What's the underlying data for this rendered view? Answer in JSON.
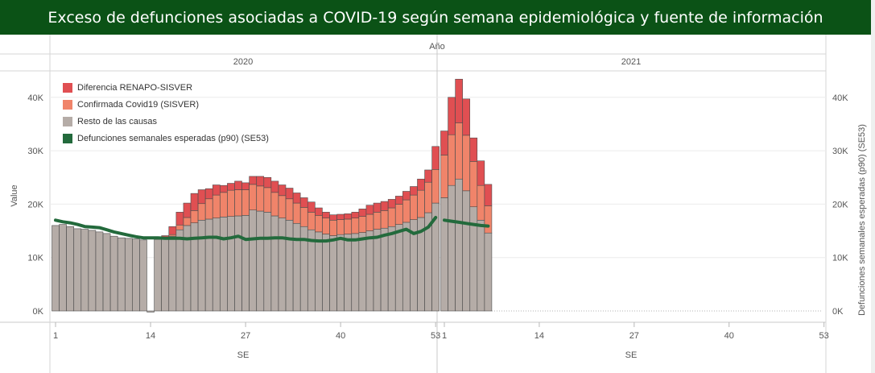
{
  "title": "Exceso de defunciones asociadas a COVID-19 según semana epidemiológica y fuente de información",
  "chart_data": {
    "type": "bar",
    "stacked": true,
    "column_header": "Año",
    "panels": [
      {
        "year": "2020",
        "x_ticks": [
          "1",
          "14",
          "27",
          "40",
          "53"
        ]
      },
      {
        "year": "2021",
        "x_ticks": [
          "1",
          "14",
          "27",
          "40",
          "53"
        ]
      }
    ],
    "xlabel": "SE",
    "ylabel_left": "Value",
    "ylabel_right": "Defunciones semanales esperadas (p90) (SE53)",
    "ylim": [
      0,
      45000
    ],
    "y_ticks": [
      "0K",
      "10K",
      "20K",
      "30K",
      "40K"
    ],
    "y_tick_values": [
      0,
      10000,
      20000,
      30000,
      40000
    ],
    "legend": [
      {
        "name": "Diferencia RENAPO-SISVER",
        "color": "#e04f52"
      },
      {
        "name": "Confirmada Covid19 (SISVER)",
        "color": "#f0846a"
      },
      {
        "name": "Resto de las causas",
        "color": "#b5aca7"
      },
      {
        "name": "Defunciones semanales esperadas (p90) (SE53)",
        "color": "#236a3c"
      }
    ],
    "series_2020": {
      "weeks": [
        1,
        2,
        3,
        4,
        5,
        6,
        7,
        8,
        9,
        10,
        11,
        12,
        13,
        14,
        15,
        16,
        17,
        18,
        19,
        20,
        21,
        22,
        23,
        24,
        25,
        26,
        27,
        28,
        29,
        30,
        31,
        32,
        33,
        34,
        35,
        36,
        37,
        38,
        39,
        40,
        41,
        42,
        43,
        44,
        45,
        46,
        47,
        48,
        49,
        50,
        51,
        52,
        53
      ],
      "resto": [
        16000,
        16200,
        15800,
        15400,
        15300,
        15100,
        14800,
        14500,
        14000,
        13700,
        13600,
        13500,
        13300,
        -200,
        13400,
        13600,
        14000,
        15200,
        16000,
        16500,
        17000,
        17200,
        17400,
        17600,
        17700,
        17800,
        17900,
        18900,
        18700,
        18500,
        17800,
        17400,
        17000,
        16400,
        15800,
        15200,
        14800,
        14400,
        14100,
        14300,
        14400,
        14500,
        14700,
        15000,
        15300,
        15500,
        15800,
        16200,
        16600,
        17100,
        17500,
        18400,
        20200
      ],
      "confirmada": [
        0,
        0,
        0,
        0,
        0,
        0,
        0,
        0,
        0,
        0,
        0,
        0,
        0,
        0,
        0,
        0,
        300,
        900,
        1500,
        2300,
        3100,
        3800,
        4300,
        4600,
        4900,
        4900,
        4800,
        4800,
        4700,
        4600,
        4400,
        4200,
        4000,
        3800,
        3600,
        3300,
        3100,
        3000,
        2900,
        2800,
        2800,
        2900,
        3000,
        3100,
        3200,
        3300,
        3500,
        3800,
        4200,
        4600,
        5100,
        5700,
        6300
      ],
      "diferencia": [
        0,
        0,
        0,
        0,
        0,
        0,
        0,
        0,
        0,
        0,
        0,
        0,
        0,
        0,
        100,
        500,
        1500,
        2400,
        2700,
        3200,
        2600,
        1900,
        1900,
        1300,
        1300,
        1600,
        1300,
        1500,
        1800,
        1900,
        2100,
        2000,
        2000,
        1900,
        1800,
        1900,
        1400,
        1100,
        1000,
        1000,
        1000,
        1100,
        1400,
        1700,
        1700,
        1700,
        1600,
        1500,
        1600,
        1600,
        2100,
        2300,
        4300
      ],
      "expected": [
        17000,
        16700,
        16500,
        16200,
        15800,
        15700,
        15600,
        15200,
        14800,
        14500,
        14200,
        13900,
        13700,
        13700,
        13700,
        13600,
        13600,
        13600,
        13500,
        13600,
        13700,
        13800,
        13800,
        13500,
        13700,
        14000,
        13400,
        13500,
        13600,
        13600,
        13700,
        13700,
        13500,
        13400,
        13400,
        13200,
        13100,
        13100,
        13300,
        13600,
        13300,
        13300,
        13500,
        13700,
        13800,
        14200,
        14500,
        14900,
        15300,
        14500,
        14900,
        15700,
        17500
      ]
    },
    "series_2021": {
      "weeks": [
        1,
        2,
        3,
        4,
        5,
        6,
        7
      ],
      "resto": [
        21200,
        23500,
        24700,
        22500,
        19500,
        17000,
        14600
      ],
      "confirmada": [
        8000,
        9500,
        10500,
        10400,
        8500,
        6500,
        5100
      ],
      "diferencia": [
        4500,
        7000,
        8200,
        6800,
        4400,
        4600,
        4000
      ],
      "expected": [
        17000,
        16800,
        16600,
        16400,
        16200,
        16000,
        15900
      ]
    }
  }
}
